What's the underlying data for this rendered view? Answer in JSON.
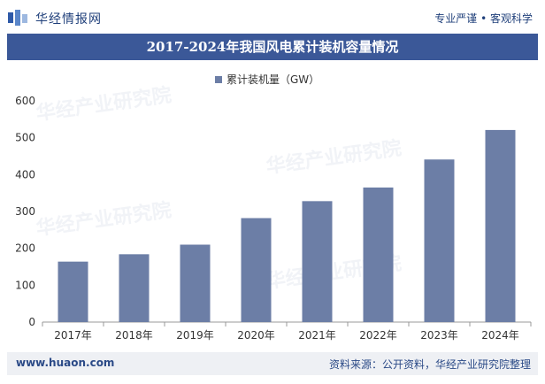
{
  "header": {
    "brand": "华经情报网",
    "tagline": "专业严谨 • 客观科学"
  },
  "footer": {
    "url": "www.huaon.com",
    "source": "资料来源：公开资料，华经产业研究院整理"
  },
  "watermark": "华经产业研究院",
  "colors": {
    "bar": "#6c7ea6",
    "title_bg": "#3b5898",
    "brand": "#1f3f7a"
  },
  "chart_data": {
    "type": "bar",
    "title": "2017-2024年我国风电累计装机容量情况",
    "categories": [
      "2017年",
      "2018年",
      "2019年",
      "2020年",
      "2021年",
      "2022年",
      "2023年",
      "2024年"
    ],
    "series": [
      {
        "name": "累计装机量（GW）",
        "values": [
          164,
          184,
          210,
          282,
          328,
          365,
          441,
          521
        ]
      }
    ],
    "ylim": [
      0,
      600
    ],
    "yticks": [
      0,
      100,
      200,
      300,
      400,
      500,
      600
    ],
    "legend": "top-center",
    "grid": false
  }
}
